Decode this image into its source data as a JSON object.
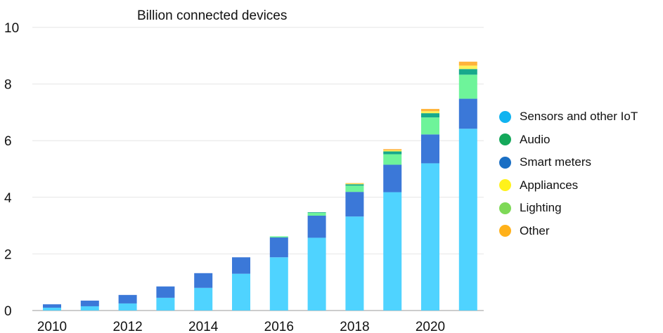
{
  "chart_data": {
    "type": "bar",
    "stacked": true,
    "unit_label": "Billion connected devices",
    "categories": [
      "2010",
      "2011",
      "2012",
      "2013",
      "2014",
      "2015",
      "2016",
      "2017",
      "2018",
      "2019",
      "2020",
      "2021"
    ],
    "x_tick_labels": [
      "2010",
      "2012",
      "2014",
      "2016",
      "2018",
      "2020"
    ],
    "y_ticks": [
      "0",
      "2",
      "4",
      "6",
      "8",
      "10"
    ],
    "ylim": [
      0,
      10
    ],
    "grid": true,
    "legend_position": "right",
    "series": [
      {
        "name": "Sensors and other IoT",
        "color": "#4fd3ff",
        "legend_color": "#11b3f0",
        "values": [
          0.1,
          0.15,
          0.25,
          0.45,
          0.8,
          1.3,
          1.88,
          2.57,
          3.32,
          4.18,
          5.2,
          6.42
        ]
      },
      {
        "name": "Smart meters",
        "color": "#3b78d8",
        "legend_color": "#1a6fc4",
        "values": [
          0.12,
          0.2,
          0.3,
          0.4,
          0.52,
          0.58,
          0.7,
          0.78,
          0.87,
          0.97,
          1.02,
          1.06
        ]
      },
      {
        "name": "Lighting",
        "color": "#6ef49a",
        "legend_color": "#7ed957",
        "values": [
          0.0,
          0.0,
          0.0,
          0.0,
          0.0,
          0.0,
          0.04,
          0.1,
          0.22,
          0.37,
          0.6,
          0.85
        ]
      },
      {
        "name": "Audio",
        "color": "#17a98c",
        "legend_color": "#14a85a",
        "values": [
          0.0,
          0.0,
          0.0,
          0.0,
          0.0,
          0.0,
          0.0,
          0.02,
          0.05,
          0.1,
          0.15,
          0.2
        ]
      },
      {
        "name": "Appliances",
        "color": "#fff35a",
        "legend_color": "#fff21a",
        "values": [
          0.0,
          0.0,
          0.0,
          0.0,
          0.0,
          0.0,
          0.0,
          0.0,
          0.02,
          0.04,
          0.07,
          0.12
        ]
      },
      {
        "name": "Other",
        "color": "#ffb33a",
        "legend_color": "#ffb11a",
        "values": [
          0.0,
          0.0,
          0.0,
          0.0,
          0.0,
          0.0,
          0.0,
          0.0,
          0.02,
          0.04,
          0.08,
          0.14
        ]
      }
    ],
    "legend_order": [
      "Sensors and other IoT",
      "Audio",
      "Smart meters",
      "Appliances",
      "Lighting",
      "Other"
    ]
  }
}
